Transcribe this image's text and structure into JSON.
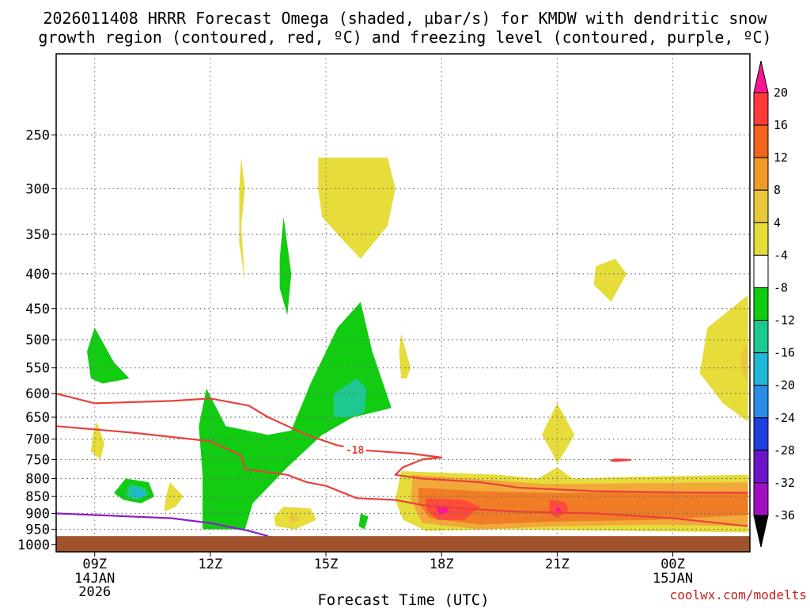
{
  "chart_data": {
    "type": "heatmap",
    "title": [
      "2026011408 HRRR Forecast Omega (shaded, μbar/s) for KMDW with dendritic snow",
      "growth region (contoured, red, ºC) and freezing level (contoured, purple, ºC)"
    ],
    "xlabel": "Forecast Time (UTC)",
    "ylabel": "",
    "credit": "coolwx.com/modelts",
    "x_range": [
      "2026-01-14T08:00Z",
      "2026-01-15T02:00Z"
    ],
    "x_ticks": [
      {
        "t": 9,
        "label": "09Z",
        "sub": [
          "14JAN",
          "2026"
        ]
      },
      {
        "t": 12,
        "label": "12Z",
        "sub": []
      },
      {
        "t": 15,
        "label": "15Z",
        "sub": []
      },
      {
        "t": 18,
        "label": "18Z",
        "sub": []
      },
      {
        "t": 21,
        "label": "21Z",
        "sub": []
      },
      {
        "t": 24,
        "label": "00Z",
        "sub": [
          "15JAN"
        ]
      }
    ],
    "y_scale": "log-pressure",
    "y_range_hpa": [
      1025,
      190
    ],
    "y_ticks": [
      250,
      300,
      350,
      400,
      450,
      500,
      550,
      600,
      650,
      700,
      750,
      800,
      850,
      900,
      950,
      1000
    ],
    "grid": true,
    "colorbar": {
      "units": "μbar/s",
      "placement": "right",
      "labels": [
        20,
        16,
        12,
        8,
        4,
        -4,
        -8,
        -12,
        -16,
        -20,
        -24,
        -28,
        -32,
        -36
      ],
      "colors": [
        "#ff1493",
        "#ff3a3a",
        "#f0641e",
        "#f09a2a",
        "#e8c83a",
        "#e6dc3a",
        "#ffffff",
        "#11cc11",
        "#1fc890",
        "#21b7d6",
        "#2b8ce6",
        "#1e3ee0",
        "#6a16c8",
        "#a010c0",
        "#a8a8a8",
        "#000000"
      ]
    },
    "contour_labels": [
      {
        "value": "-18",
        "t": 15.75,
        "p": 725
      }
    ],
    "ground_level_hpa": 972,
    "regions": [
      {
        "name": "ascent-upper-a",
        "omega": 4,
        "color": "#e6dc3a",
        "pts": [
          [
            12.8,
            270
          ],
          [
            12.9,
            300
          ],
          [
            12.8,
            340
          ],
          [
            12.9,
            410
          ],
          [
            12.75,
            360
          ],
          [
            12.75,
            300
          ]
        ]
      },
      {
        "name": "ascent-upper-b",
        "omega": 4,
        "color": "#e6dc3a",
        "pts": [
          [
            14.8,
            270
          ],
          [
            16.6,
            270
          ],
          [
            16.8,
            300
          ],
          [
            16.6,
            340
          ],
          [
            15.9,
            380
          ],
          [
            15.5,
            360
          ],
          [
            14.9,
            330
          ],
          [
            14.8,
            300
          ]
        ]
      },
      {
        "name": "ascent-right-mid",
        "omega": 4,
        "color": "#e6dc3a",
        "pts": [
          [
            22.5,
            380
          ],
          [
            22.8,
            400
          ],
          [
            22.4,
            440
          ],
          [
            21.95,
            415
          ],
          [
            22.0,
            390
          ]
        ]
      },
      {
        "name": "ascent-right-edge",
        "omega": 4,
        "color": "#e6dc3a",
        "pts": [
          [
            25.95,
            430
          ],
          [
            24.9,
            480
          ],
          [
            24.7,
            560
          ],
          [
            25.3,
            620
          ],
          [
            25.95,
            660
          ]
        ]
      },
      {
        "name": "ascent-right-edge-core",
        "omega": 8,
        "color": "#e8c83a",
        "pts": [
          [
            25.95,
            500
          ],
          [
            25.75,
            530
          ],
          [
            25.8,
            560
          ],
          [
            25.95,
            580
          ]
        ]
      },
      {
        "name": "ascent-16z-small",
        "omega": 4,
        "color": "#e6dc3a",
        "pts": [
          [
            16.95,
            490
          ],
          [
            17.2,
            550
          ],
          [
            17.1,
            570
          ],
          [
            16.95,
            570
          ],
          [
            16.9,
            520
          ]
        ]
      },
      {
        "name": "ascent-9z-small",
        "omega": 4,
        "color": "#e6dc3a",
        "pts": [
          [
            9.05,
            660
          ],
          [
            9.25,
            710
          ],
          [
            9.15,
            750
          ],
          [
            8.9,
            730
          ],
          [
            8.95,
            690
          ]
        ]
      },
      {
        "name": "ascent-21z-spike",
        "omega": 4,
        "color": "#e6dc3a",
        "pts": [
          [
            21.0,
            620
          ],
          [
            21.45,
            690
          ],
          [
            21.2,
            730
          ],
          [
            21.0,
            760
          ],
          [
            20.85,
            730
          ],
          [
            20.6,
            690
          ]
        ]
      },
      {
        "name": "ascent-23z-blip",
        "omega": 4,
        "color": "#e6dc3a",
        "pts": [
          [
            22.5,
            750
          ],
          [
            22.8,
            752
          ],
          [
            22.5,
            754
          ]
        ]
      },
      {
        "name": "ascent-11z-small",
        "omega": 4,
        "color": "#e6dc3a",
        "pts": [
          [
            10.95,
            810
          ],
          [
            11.3,
            850
          ],
          [
            11.1,
            880
          ],
          [
            10.8,
            895
          ],
          [
            10.85,
            850
          ]
        ]
      },
      {
        "name": "ascent-14z-low",
        "omega": 4,
        "color": "#e6dc3a",
        "pts": [
          [
            13.9,
            880
          ],
          [
            14.6,
            885
          ],
          [
            14.75,
            920
          ],
          [
            14.2,
            950
          ],
          [
            13.7,
            940
          ],
          [
            13.65,
            910
          ]
        ]
      },
      {
        "name": "ascent-14z-low-core",
        "omega": 8,
        "color": "#e8c83a",
        "pts": [
          [
            14.05,
            905
          ],
          [
            14.2,
            900
          ],
          [
            14.3,
            920
          ],
          [
            14.1,
            930
          ]
        ]
      },
      {
        "name": "ascent-low-band",
        "omega": 4,
        "color": "#e6dc3a",
        "pts": [
          [
            16.95,
            780
          ],
          [
            19.5,
            790
          ],
          [
            20.5,
            800
          ],
          [
            21.0,
            770
          ],
          [
            21.4,
            800
          ],
          [
            23.0,
            795
          ],
          [
            25.95,
            790
          ],
          [
            25.95,
            960
          ],
          [
            19.5,
            950
          ],
          [
            17.6,
            955
          ],
          [
            17.0,
            920
          ],
          [
            16.8,
            860
          ]
        ]
      },
      {
        "name": "ascent-low-band-8",
        "omega": 8,
        "color": "#f2a93a",
        "pts": [
          [
            17.25,
            790
          ],
          [
            18.7,
            800
          ],
          [
            20.7,
            815
          ],
          [
            25.95,
            810
          ],
          [
            25.95,
            940
          ],
          [
            23.5,
            935
          ],
          [
            21.0,
            940
          ],
          [
            19.0,
            950
          ],
          [
            17.5,
            930
          ],
          [
            17.2,
            860
          ]
        ]
      },
      {
        "name": "ascent-low-band-12",
        "omega": 12,
        "color": "#f07d26",
        "pts": [
          [
            17.4,
            825
          ],
          [
            19.0,
            835
          ],
          [
            21.0,
            840
          ],
          [
            25.95,
            835
          ],
          [
            25.95,
            905
          ],
          [
            23.5,
            920
          ],
          [
            21.0,
            925
          ],
          [
            19.0,
            935
          ],
          [
            17.7,
            915
          ],
          [
            17.4,
            870
          ]
        ]
      },
      {
        "name": "ascent-low-band-16",
        "omega": 16,
        "color": "#ff4c3a",
        "pts": [
          [
            17.6,
            855
          ],
          [
            18.6,
            860
          ],
          [
            19.0,
            880
          ],
          [
            18.6,
            920
          ],
          [
            17.9,
            920
          ],
          [
            17.6,
            890
          ]
        ]
      },
      {
        "name": "ascent-21z-core-16",
        "omega": 16,
        "color": "#ff4c3a",
        "pts": [
          [
            20.8,
            860
          ],
          [
            21.2,
            865
          ],
          [
            21.3,
            890
          ],
          [
            21.0,
            915
          ],
          [
            20.8,
            900
          ]
        ]
      },
      {
        "name": "ascent-18z-core-20",
        "omega": 20,
        "color": "#ff1493",
        "pts": [
          [
            17.85,
            880
          ],
          [
            18.1,
            875
          ],
          [
            18.2,
            895
          ],
          [
            17.95,
            905
          ]
        ]
      },
      {
        "name": "ascent-21z-core-20",
        "omega": 20,
        "color": "#ff1493",
        "pts": [
          [
            20.95,
            885
          ],
          [
            21.05,
            880
          ],
          [
            21.1,
            895
          ],
          [
            21.0,
            900
          ]
        ]
      },
      {
        "name": "descent-9z-upper",
        "omega": -4,
        "color": "#11cc11",
        "pts": [
          [
            9.0,
            480
          ],
          [
            9.5,
            540
          ],
          [
            9.9,
            570
          ],
          [
            9.2,
            580
          ],
          [
            8.9,
            570
          ],
          [
            8.8,
            520
          ]
        ]
      },
      {
        "name": "descent-13z-narrow",
        "omega": -4,
        "color": "#11cc11",
        "pts": [
          [
            13.9,
            330
          ],
          [
            14.1,
            400
          ],
          [
            14.0,
            460
          ],
          [
            13.8,
            420
          ],
          [
            13.8,
            380
          ]
        ]
      },
      {
        "name": "descent-main",
        "omega": -4,
        "color": "#11cc11",
        "pts": [
          [
            11.9,
            590
          ],
          [
            12.4,
            670
          ],
          [
            13.5,
            690
          ],
          [
            14.1,
            680
          ],
          [
            14.6,
            580
          ],
          [
            15.3,
            480
          ],
          [
            15.9,
            440
          ],
          [
            16.2,
            520
          ],
          [
            16.7,
            630
          ],
          [
            16.2,
            640
          ],
          [
            15.7,
            650
          ],
          [
            14.9,
            690
          ],
          [
            14.0,
            770
          ],
          [
            13.1,
            870
          ],
          [
            12.9,
            950
          ],
          [
            11.8,
            950
          ],
          [
            11.8,
            790
          ],
          [
            11.7,
            670
          ]
        ]
      },
      {
        "name": "descent-main-core",
        "omega": -8,
        "color": "#1fc890",
        "pts": [
          [
            15.8,
            570
          ],
          [
            16.05,
            590
          ],
          [
            16.0,
            640
          ],
          [
            15.6,
            650
          ],
          [
            15.2,
            650
          ],
          [
            15.2,
            600
          ]
        ]
      },
      {
        "name": "descent-9z-low",
        "omega": -4,
        "color": "#11cc11",
        "pts": [
          [
            9.8,
            800
          ],
          [
            10.4,
            810
          ],
          [
            10.55,
            850
          ],
          [
            10.2,
            870
          ],
          [
            9.75,
            860
          ],
          [
            9.5,
            840
          ]
        ]
      },
      {
        "name": "descent-9z-low-8",
        "omega": -8,
        "color": "#1fc890",
        "pts": [
          [
            9.9,
            815
          ],
          [
            10.3,
            825
          ],
          [
            10.4,
            845
          ],
          [
            10.1,
            860
          ],
          [
            9.8,
            850
          ]
        ]
      },
      {
        "name": "descent-9z-low-12",
        "omega": -12,
        "color": "#21b7d6",
        "pts": [
          [
            10.0,
            825
          ],
          [
            10.25,
            835
          ],
          [
            10.3,
            850
          ],
          [
            10.05,
            855
          ],
          [
            9.95,
            845
          ]
        ]
      },
      {
        "name": "descent-16z-low",
        "omega": -4,
        "color": "#11cc11",
        "pts": [
          [
            15.9,
            900
          ],
          [
            16.1,
            910
          ],
          [
            16.0,
            950
          ],
          [
            15.85,
            940
          ]
        ]
      }
    ],
    "contours": [
      {
        "name": "dgz-upper-bound",
        "color": "#e8413a",
        "pts": [
          [
            8.0,
            600
          ],
          [
            8.5,
            610
          ],
          [
            9.0,
            620
          ],
          [
            11.0,
            615
          ],
          [
            12.0,
            610
          ],
          [
            13.0,
            625
          ],
          [
            13.5,
            650
          ],
          [
            14.5,
            690
          ],
          [
            15.3,
            715
          ],
          [
            16.0,
            727
          ],
          [
            17.2,
            735
          ],
          [
            18.0,
            745
          ],
          [
            17.5,
            750
          ],
          [
            17.0,
            770
          ],
          [
            16.8,
            790
          ],
          [
            17.5,
            800
          ],
          [
            19.0,
            810
          ],
          [
            20.0,
            825
          ],
          [
            22.0,
            835
          ],
          [
            24.0,
            838
          ],
          [
            25.95,
            840
          ]
        ]
      },
      {
        "name": "dgz-lower-bound",
        "color": "#e8413a",
        "pts": [
          [
            8.0,
            670
          ],
          [
            10.0,
            685
          ],
          [
            12.0,
            705
          ],
          [
            12.8,
            740
          ],
          [
            12.9,
            775
          ],
          [
            14.0,
            790
          ],
          [
            14.5,
            810
          ],
          [
            15.0,
            820
          ],
          [
            15.8,
            855
          ],
          [
            16.8,
            860
          ],
          [
            17.5,
            875
          ],
          [
            18.5,
            885
          ],
          [
            20.0,
            895
          ],
          [
            22.0,
            900
          ],
          [
            24.0,
            915
          ],
          [
            25.95,
            940
          ]
        ]
      },
      {
        "name": "dgz-closed-23z",
        "color": "#e8413a",
        "pts": [
          [
            22.5,
            750
          ],
          [
            22.9,
            751
          ],
          [
            22.5,
            754
          ],
          [
            22.4,
            752
          ],
          [
            22.5,
            750
          ]
        ]
      },
      {
        "name": "freezing-level",
        "color": "#8a1ec8",
        "pts": [
          [
            8.0,
            900
          ],
          [
            9.0,
            905
          ],
          [
            11.0,
            915
          ],
          [
            12.0,
            930
          ],
          [
            13.0,
            955
          ],
          [
            13.5,
            972
          ]
        ]
      }
    ]
  }
}
